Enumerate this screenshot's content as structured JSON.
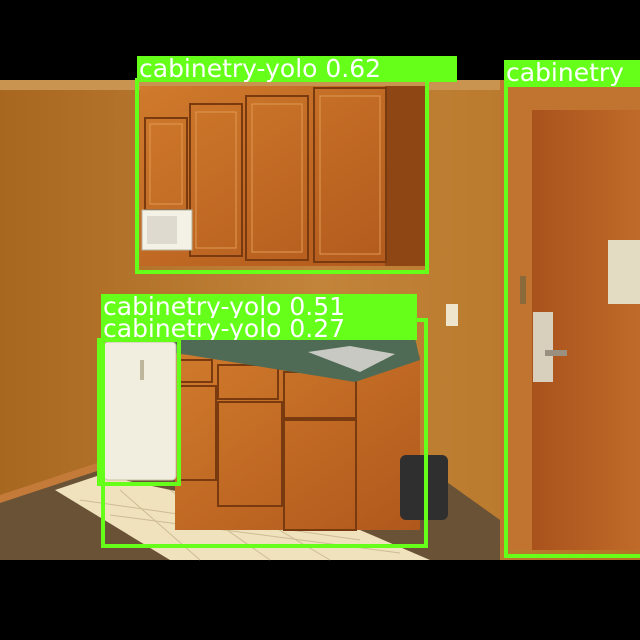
{
  "image": {
    "description_colors": {
      "wall": "#b9782a",
      "cabinet": "#c06a22",
      "door": "#b2561e",
      "countertop": "#4f6b55",
      "floor_tile": "#f0e2bd",
      "carpet": "#6a5236",
      "letterbox": "#000000",
      "box_color": "#66ff1a"
    }
  },
  "detections": [
    {
      "label": "cabinetry-yolo 0.62"
    },
    {
      "label": "cabinetry"
    },
    {
      "label": "cabinetry-yolo 0.51"
    },
    {
      "label": "cabinetry-yolo 0.27"
    }
  ]
}
